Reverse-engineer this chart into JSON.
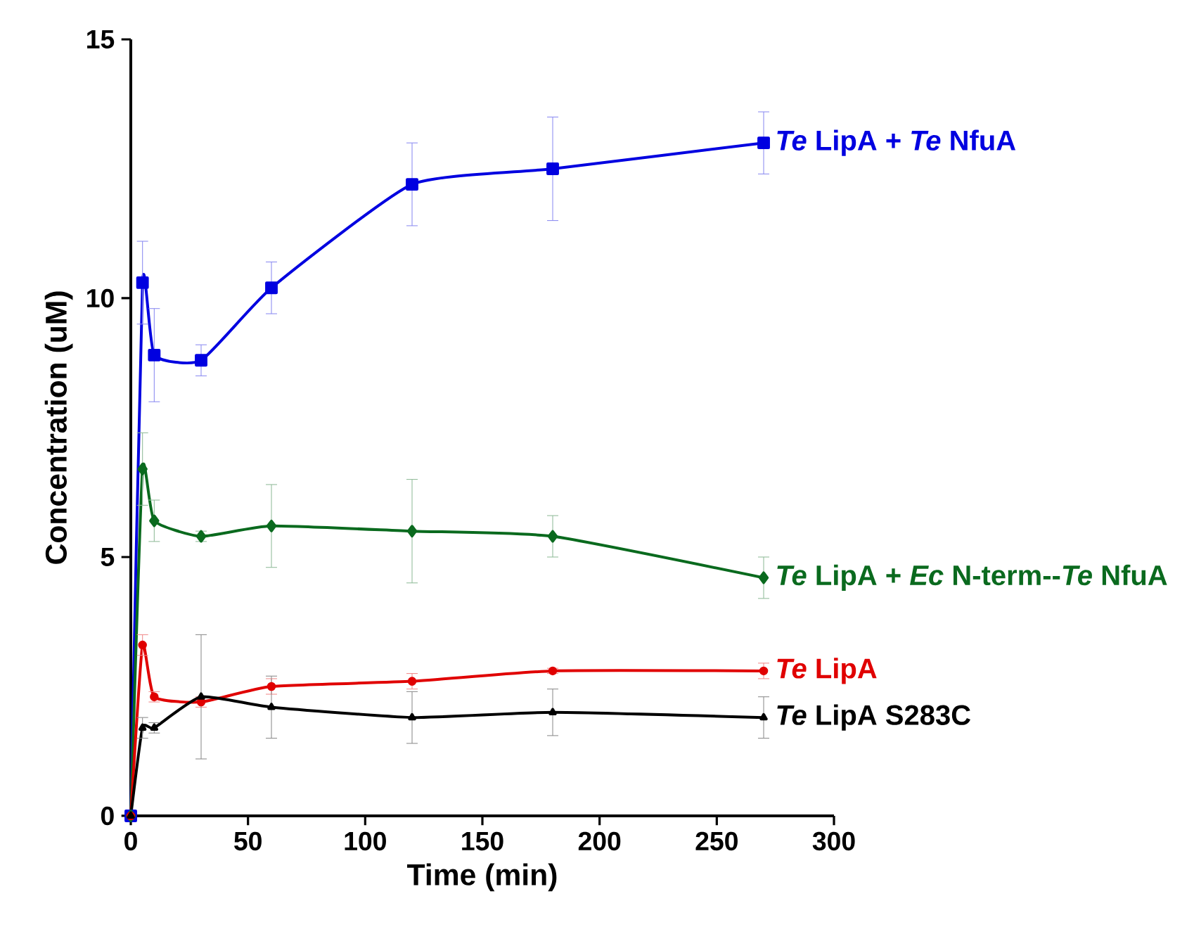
{
  "chart_data": {
    "type": "line",
    "xlabel": "Time (min)",
    "ylabel": "Concentration (uM)",
    "x": [
      0,
      5,
      10,
      30,
      60,
      120,
      180,
      270
    ],
    "xlim": [
      0,
      300
    ],
    "xticks": [
      0,
      50,
      100,
      150,
      200,
      250,
      300
    ],
    "ylim": [
      0,
      15
    ],
    "yticks": [
      0,
      5,
      10,
      15
    ],
    "line_style": "solid",
    "series": [
      {
        "name": "*Te* LipA + *Te* NfuA",
        "color": "#0000e0",
        "marker": "square",
        "values": [
          0,
          10.3,
          8.9,
          8.8,
          10.2,
          12.2,
          12.5,
          13.0
        ],
        "errors": [
          null,
          0.8,
          0.9,
          0.3,
          0.5,
          0.8,
          1.0,
          0.6
        ]
      },
      {
        "name": "*Te* LipA + *Ec* N-term--*Te* NfuA",
        "color": "#0a6a1e",
        "marker": "diamond",
        "values": [
          0,
          6.7,
          5.7,
          5.4,
          5.6,
          5.5,
          5.4,
          4.6
        ],
        "errors": [
          null,
          0.7,
          0.4,
          0.1,
          0.8,
          1.0,
          0.4,
          0.4
        ]
      },
      {
        "name": "*Te* LipA",
        "color": "#e00000",
        "marker": "circle",
        "values": [
          0,
          3.3,
          2.3,
          2.2,
          2.5,
          2.6,
          2.8,
          2.8
        ],
        "errors": [
          null,
          0.2,
          0.1,
          0.1,
          0.15,
          0.15,
          0.05,
          0.15
        ]
      },
      {
        "name": "*Te* LipA S283C",
        "color": "#000000",
        "marker": "triangle",
        "values": [
          0,
          1.7,
          1.7,
          2.3,
          2.1,
          1.9,
          2.0,
          1.9
        ],
        "errors": [
          null,
          0.2,
          0.1,
          1.2,
          0.6,
          0.5,
          0.45,
          0.4
        ]
      }
    ]
  }
}
